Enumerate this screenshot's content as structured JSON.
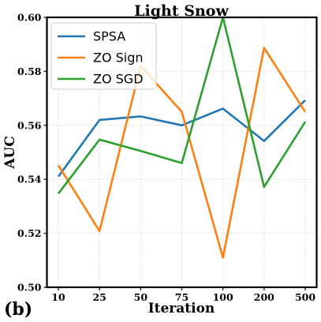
{
  "chart_data": {
    "type": "line",
    "title": "Light Snow",
    "xlabel": "Iteration",
    "ylabel": "AUC",
    "panel_label": "(b)",
    "categories": [
      "10",
      "25",
      "50",
      "75",
      "100",
      "200",
      "500"
    ],
    "ylim": [
      0.5,
      0.6
    ],
    "yticks": [
      "0.50",
      "0.52",
      "0.54",
      "0.56",
      "0.58",
      "0.60"
    ],
    "grid": true,
    "legend_position": "top-left",
    "series": [
      {
        "name": "SPSA",
        "color": "#1f77b4",
        "values": [
          0.541,
          0.562,
          0.5633,
          0.56,
          0.5662,
          0.5542,
          0.5693
        ]
      },
      {
        "name": "ZO Sign",
        "color": "#ff7f0e",
        "values": [
          0.5452,
          0.5208,
          0.582,
          0.565,
          0.511,
          0.5887,
          0.565
        ]
      },
      {
        "name": "ZO SGD",
        "color": "#2ca02c",
        "values": [
          0.5347,
          0.5547,
          0.5505,
          0.546,
          0.6,
          0.5372,
          0.5613
        ]
      }
    ]
  }
}
